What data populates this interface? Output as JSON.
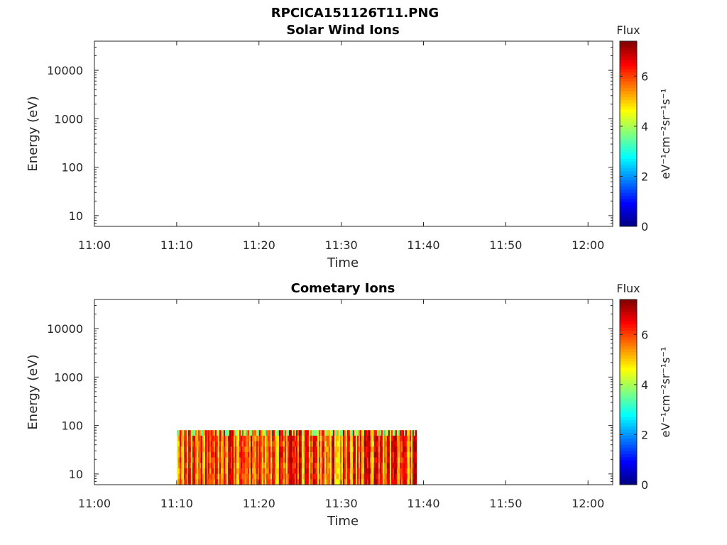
{
  "figure_title": "RPCICA151126T11.PNG",
  "colors": {
    "axis": "#262626",
    "background": "#ffffff",
    "colormap": "jet"
  },
  "chart_data": [
    {
      "type": "heatmap",
      "title": "Solar Wind Ions",
      "xlabel": "Time",
      "ylabel": "Energy (eV)",
      "xlim": [
        "11:00",
        "12:03"
      ],
      "x_ticks": [
        "11:00",
        "11:10",
        "11:20",
        "11:30",
        "11:40",
        "11:50",
        "12:00"
      ],
      "ylim": [
        6,
        40000
      ],
      "y_scale": "log",
      "y_ticks": [
        10,
        100,
        1000,
        10000
      ],
      "y_tick_labels": [
        "10",
        "100",
        "1000",
        "10000"
      ],
      "grid": false,
      "colorbar": {
        "label": "Flux",
        "units": "eV⁻¹cm⁻²sr⁻¹s⁻¹",
        "range": [
          0,
          7.4
        ],
        "ticks": [
          0,
          2,
          4,
          6
        ]
      },
      "data_coverage": null
    },
    {
      "type": "heatmap",
      "title": "Cometary Ions",
      "xlabel": "Time",
      "ylabel": "Energy (eV)",
      "xlim": [
        "11:00",
        "12:03"
      ],
      "x_ticks": [
        "11:00",
        "11:10",
        "11:20",
        "11:30",
        "11:40",
        "11:50",
        "12:00"
      ],
      "ylim": [
        6,
        40000
      ],
      "y_scale": "log",
      "y_ticks": [
        10,
        100,
        1000,
        10000
      ],
      "y_tick_labels": [
        "10",
        "100",
        "1000",
        "10000"
      ],
      "grid": false,
      "colorbar": {
        "label": "Flux",
        "units": "eV⁻¹cm⁻²sr⁻¹s⁻¹",
        "range": [
          0,
          7.4
        ],
        "ticks": [
          0,
          2,
          4,
          6
        ]
      },
      "data_coverage": {
        "time_start": "11:10",
        "time_end": "11:39",
        "energy_min": 6,
        "energy_max": 80,
        "flux_typical_range": [
          4.5,
          7.2
        ]
      }
    }
  ]
}
